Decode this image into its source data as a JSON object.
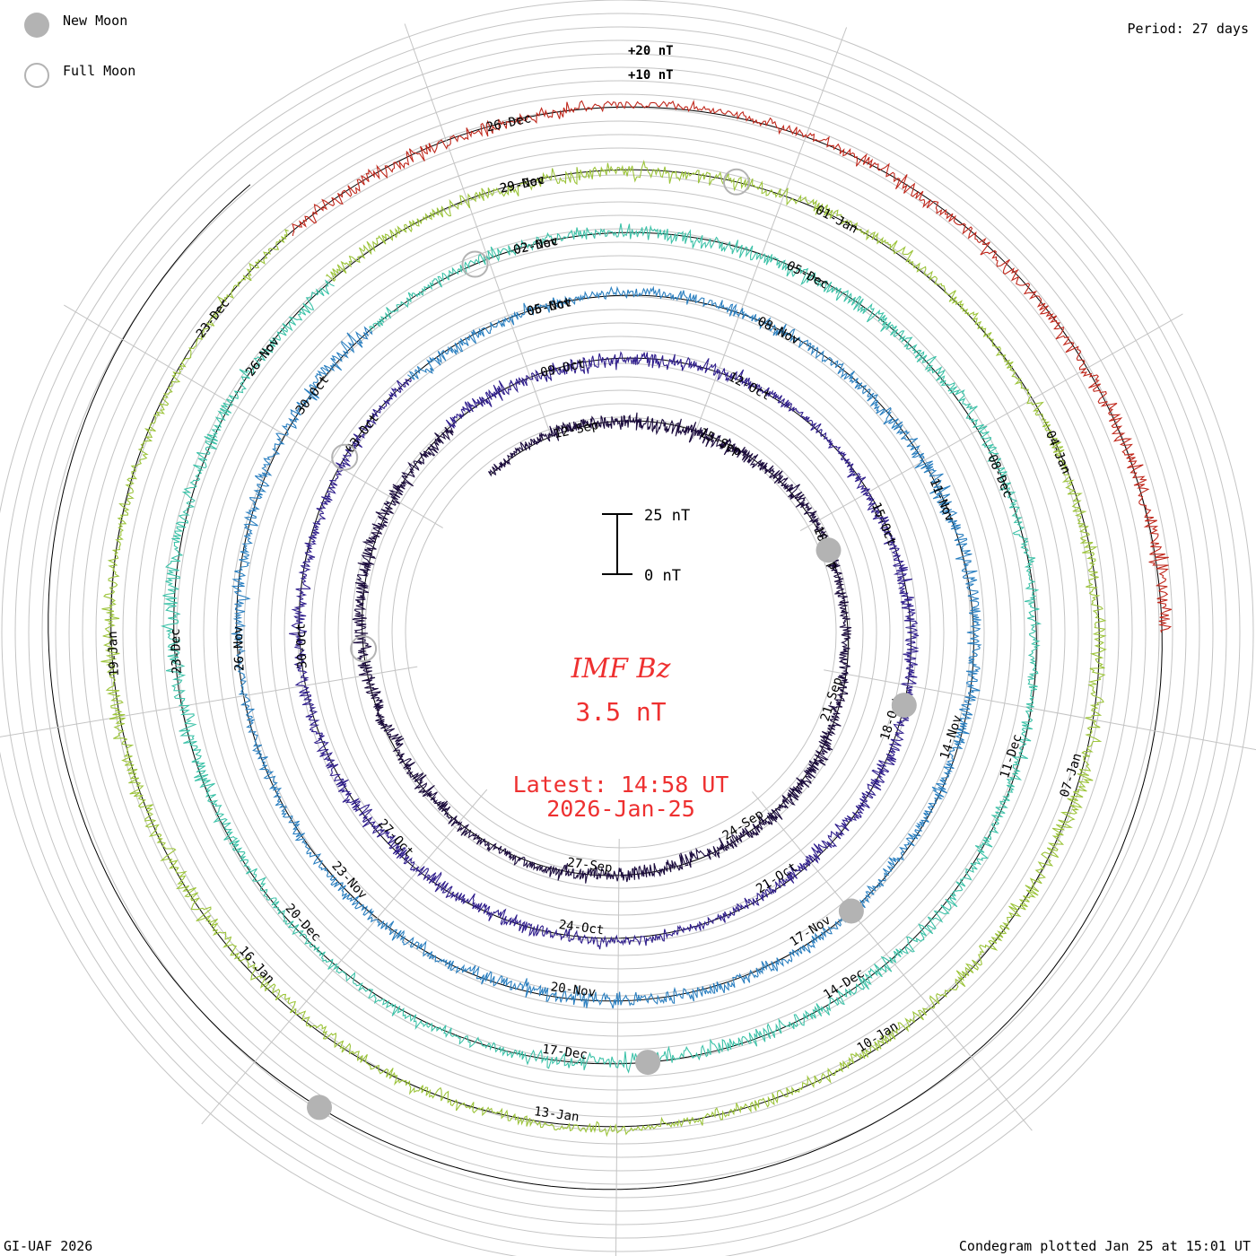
{
  "legend": {
    "new_moon": "New Moon",
    "full_moon": "Full Moon"
  },
  "period": "Period: 27 days",
  "footer": {
    "credit": "GI-UAF 2026",
    "plotted": "Condegram plotted Jan 25 at 15:01 UT"
  },
  "colors": {
    "moon_new": "#b3b3b3",
    "moon_full": "#b3b3b3",
    "title": "#ee3030",
    "grid": "#b0b0b0"
  },
  "chart_data": {
    "type": "condegram",
    "title": "IMF Bz",
    "value_text": "3.5 nT",
    "latest_label": "Latest: 14:58 UT",
    "latest_date": "2026-Jan-25",
    "period_days": 27,
    "scale_bar": {
      "top_label": "25 nT",
      "bottom_label": "0 nT",
      "range_nT": [
        0,
        25
      ]
    },
    "ring_scale_labels": [
      "+20 nT",
      "+10 nT"
    ],
    "rotations": [
      {
        "start": "2025-Sep-02",
        "color": "#1a0a3c",
        "ticks": [
          "12-Sep",
          "15-Sep",
          "18-Sep",
          "21-Sep",
          "24-Sep",
          "27-Sep"
        ]
      },
      {
        "start": "2025-Sep-29",
        "color": "#2f1d8c",
        "ticks": [
          "09-Oct",
          "12-Oct",
          "15-Oct",
          "18-Oct",
          "21-Oct",
          "24-Oct",
          "27-Oct",
          "30-Oct",
          "03-Oct",
          "06-Oct"
        ]
      },
      {
        "start": "2025-Oct-26",
        "color": "#2a7fc0",
        "ticks": [
          "05-Nov",
          "08-Nov",
          "11-Nov",
          "14-Nov",
          "17-Nov",
          "20-Nov",
          "23-Nov",
          "26-Nov",
          "30-Oct",
          "02-Nov"
        ]
      },
      {
        "start": "2025-Nov-22",
        "color": "#3cc2a8",
        "ticks": [
          "02-Dec",
          "05-Dec",
          "08-Dec",
          "11-Dec",
          "14-Dec",
          "17-Dec",
          "20-Dec",
          "23-Dec",
          "26-Nov",
          "29-Nov"
        ]
      },
      {
        "start": "2025-Dec-19",
        "color": "#9cc43a",
        "ticks": [
          "29-Dec",
          "01-Jan",
          "04-Jan",
          "07-Jan",
          "10-Jan",
          "13-Jan",
          "16-Jan",
          "19-Jan",
          "23-Dec",
          "26-Dec"
        ]
      },
      {
        "start": "2026-Jan-15",
        "color": "#c0281c",
        "ticks": []
      }
    ],
    "moons": [
      {
        "type": "new",
        "date": "2025-Sep-21"
      },
      {
        "type": "full",
        "date": "2025-Oct-07"
      },
      {
        "type": "new",
        "date": "2025-Oct-21"
      },
      {
        "type": "full",
        "date": "2025-Nov-05"
      },
      {
        "type": "new",
        "date": "2025-Nov-20"
      },
      {
        "type": "full",
        "date": "2025-Dec-04"
      },
      {
        "type": "new",
        "date": "2025-Dec-20"
      },
      {
        "type": "full",
        "date": "2026-Jan-03"
      },
      {
        "type": "new",
        "date": "2026-Jan-18"
      }
    ]
  }
}
